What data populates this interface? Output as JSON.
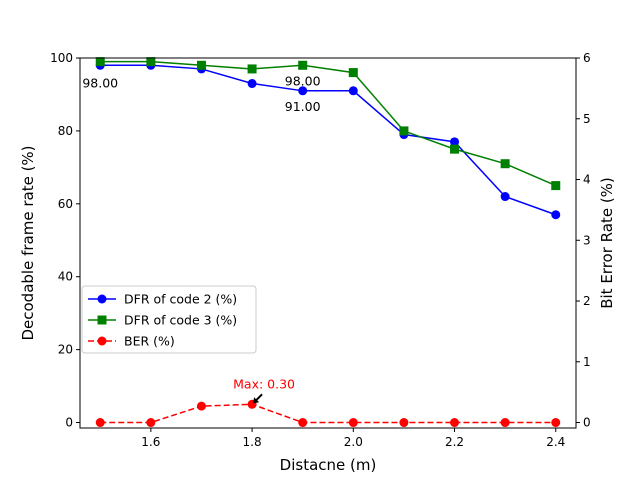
{
  "chart_data": {
    "type": "line",
    "xlabel": "Distacne (m)",
    "ylabel_left": "Decodable frame rate (%)",
    "ylabel_right": "Bit Error Rate (%)",
    "xlim": [
      1.46,
      2.44
    ],
    "ylim_left": [
      -1.5,
      100
    ],
    "ylim_right": [
      -0.09,
      6
    ],
    "x_ticks": [
      1.6,
      1.8,
      2.0,
      2.2,
      2.4
    ],
    "x_tick_labels": [
      "1.6",
      "1.8",
      "2.0",
      "2.2",
      "2.4"
    ],
    "y_ticks_left": [
      0,
      20,
      40,
      60,
      80,
      100
    ],
    "y_tick_labels_left": [
      "0",
      "20",
      "40",
      "60",
      "80",
      "100"
    ],
    "y_ticks_right": [
      0,
      1,
      2,
      3,
      4,
      5,
      6
    ],
    "y_tick_labels_right": [
      "0",
      "1",
      "2",
      "3",
      "4",
      "5",
      "6"
    ],
    "x": [
      1.5,
      1.6,
      1.7,
      1.8,
      1.9,
      2.0,
      2.1,
      2.2,
      2.3,
      2.4
    ],
    "series": [
      {
        "name": "DFR of code 2 (%)",
        "axis": "left",
        "color": "#0000ff",
        "marker": "circle",
        "linestyle": "solid",
        "values": [
          98,
          98,
          97,
          93,
          91,
          91,
          79,
          77,
          62,
          57
        ]
      },
      {
        "name": "DFR of code 3 (%)",
        "axis": "left",
        "color": "#008000",
        "marker": "square",
        "linestyle": "solid",
        "values": [
          99,
          99,
          98,
          97,
          98,
          96,
          80,
          75,
          71,
          65
        ]
      },
      {
        "name": "BER (%)",
        "axis": "right",
        "color": "#ff0000",
        "marker": "circle",
        "linestyle": "dashed",
        "values": [
          0,
          0,
          0.27,
          0.3,
          0,
          0,
          0,
          0,
          0,
          0
        ]
      }
    ],
    "annotations": [
      {
        "text": "98.00",
        "x": 1.5,
        "y": 98,
        "axis": "left",
        "color": "#000000",
        "placement": "below-left"
      },
      {
        "text": "91.00",
        "x": 1.9,
        "y": 91,
        "axis": "left",
        "color": "#000000",
        "placement": "below"
      },
      {
        "text": "98.00",
        "x": 1.9,
        "y": 98,
        "axis": "left",
        "color": "#000000",
        "placement": "below"
      },
      {
        "text": "Max: 0.30",
        "x": 1.8,
        "y": 0.3,
        "axis": "right",
        "color": "#ff0000",
        "placement": "above-right",
        "arrow": true
      }
    ],
    "legend_placement": "center-left",
    "grid": false
  }
}
